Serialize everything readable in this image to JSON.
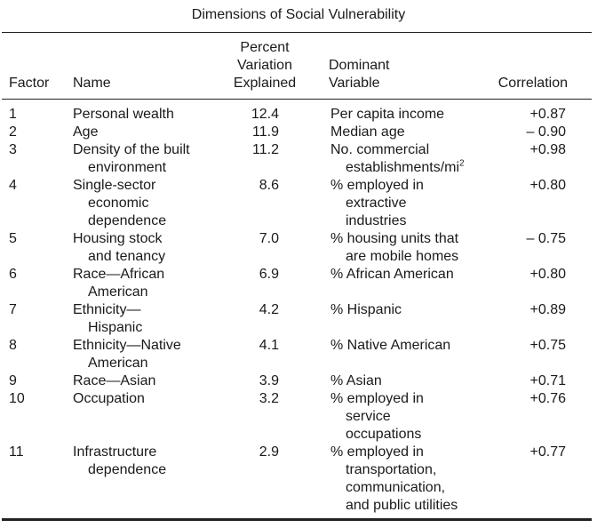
{
  "title": "Dimensions of Social Vulnerability",
  "headers": {
    "factor": "Factor",
    "name": "Name",
    "percent": [
      "Percent",
      "Variation",
      "Explained"
    ],
    "dominant": [
      "Dominant",
      "Variable"
    ],
    "correlation": "Correlation"
  },
  "rows": [
    {
      "factor": "1",
      "name": [
        "Personal wealth"
      ],
      "percent": "12.4",
      "dominant": [
        "Per capita income"
      ],
      "correlation": "+0.87"
    },
    {
      "factor": "2",
      "name": [
        "Age"
      ],
      "percent": "11.9",
      "dominant": [
        "Median age"
      ],
      "correlation": "– 0.90"
    },
    {
      "factor": "3",
      "name": [
        "Density of the built",
        "environment"
      ],
      "percent": "11.2",
      "dominant": [
        "No. commercial",
        "establishments/mi"
      ],
      "dominant_sup": "2",
      "correlation": "+0.98"
    },
    {
      "factor": "4",
      "name": [
        "Single-sector",
        "economic",
        "dependence"
      ],
      "percent": "8.6",
      "dominant": [
        "% employed in",
        "extractive",
        "industries"
      ],
      "correlation": "+0.80"
    },
    {
      "factor": "5",
      "name": [
        "Housing stock",
        "and tenancy"
      ],
      "percent": "7.0",
      "dominant": [
        "% housing units that",
        "are mobile homes"
      ],
      "correlation": "– 0.75"
    },
    {
      "factor": "6",
      "name": [
        "Race—African",
        "American"
      ],
      "percent": "6.9",
      "dominant": [
        "% African American"
      ],
      "correlation": "+0.80"
    },
    {
      "factor": "7",
      "name": [
        "Ethnicity—",
        "Hispanic"
      ],
      "percent": "4.2",
      "dominant": [
        "% Hispanic"
      ],
      "correlation": "+0.89"
    },
    {
      "factor": "8",
      "name": [
        "Ethnicity—Native",
        "American"
      ],
      "percent": "4.1",
      "dominant": [
        "% Native American"
      ],
      "correlation": "+0.75"
    },
    {
      "factor": "9",
      "name": [
        "Race—Asian"
      ],
      "percent": "3.9",
      "dominant": [
        "% Asian"
      ],
      "correlation": "+0.71"
    },
    {
      "factor": "10",
      "name": [
        "Occupation"
      ],
      "percent": "3.2",
      "dominant": [
        "% employed in",
        "service",
        "occupations"
      ],
      "correlation": "+0.76"
    },
    {
      "factor": "11",
      "name": [
        "Infrastructure",
        "dependence"
      ],
      "percent": "2.9",
      "dominant": [
        "% employed in",
        "transportation,",
        "communication,",
        "and public utilities"
      ],
      "correlation": "+0.77"
    }
  ]
}
